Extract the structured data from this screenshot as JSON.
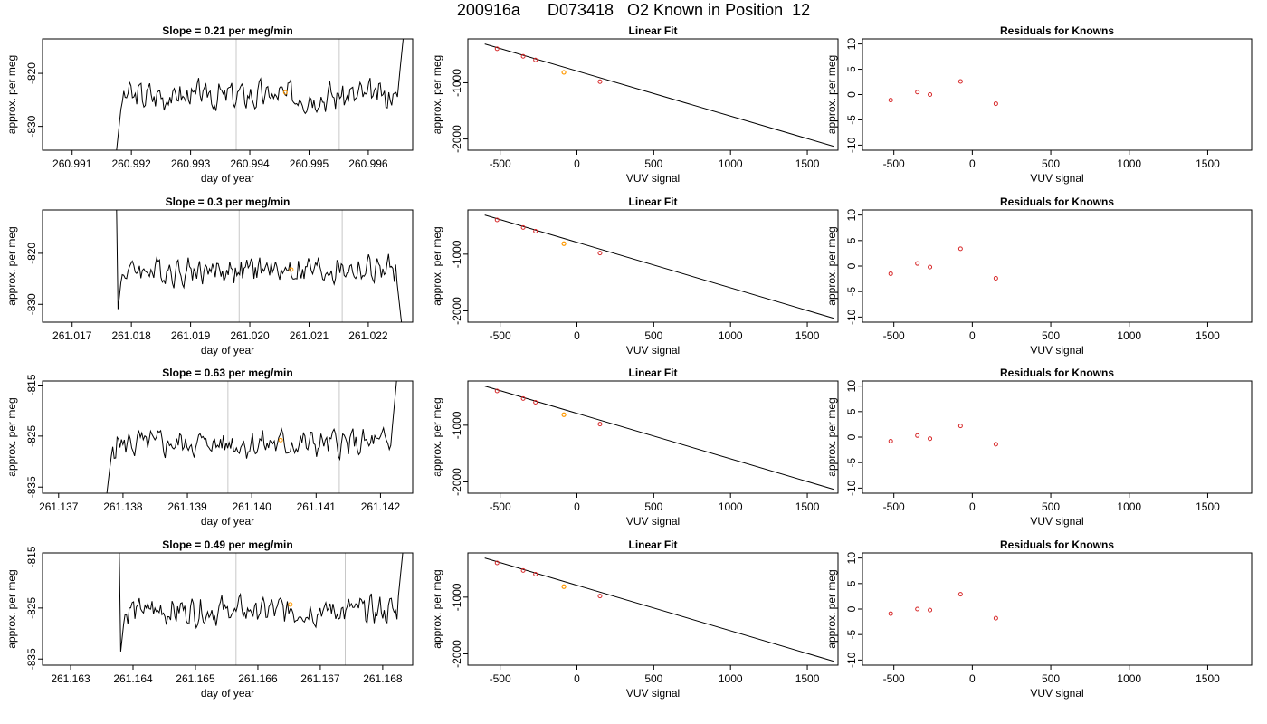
{
  "page": {
    "title": "200916a      D073418   O2 Known in Position  12"
  },
  "colors": {
    "line": "#000000",
    "frame": "#000000",
    "vline": "#c8c8c8",
    "residual": "#d62728",
    "highlight": "#ff9900"
  },
  "chart_data": [
    {
      "type": "line",
      "row": 0,
      "title": "Slope =  0.21  per meg/min",
      "xlabel": "day of year",
      "ylabel": "approx. per meg",
      "xlim": [
        260.9905,
        260.99675
      ],
      "ylim": [
        -834.5,
        -813.5
      ],
      "xticks": [
        260.991,
        260.992,
        260.993,
        260.994,
        260.995,
        260.996
      ],
      "xtick_labels": [
        "260.991",
        "260.992",
        "260.993",
        "260.994",
        "260.995",
        "260.996"
      ],
      "yticks": [
        -820,
        -830
      ],
      "ytick_labels": [
        "-820",
        "-830"
      ],
      "start": 260.99175,
      "end": 260.99659,
      "base": -824.2,
      "min": -834.5,
      "max": -813.5,
      "vlines": [
        260.99377,
        260.99551
      ],
      "point": {
        "x": 260.9946,
        "y": -823.6
      }
    },
    {
      "type": "line",
      "row": 1,
      "title": "Slope =  0.3  per meg/min",
      "xlabel": "day of year",
      "ylabel": "approx. per meg",
      "xlim": [
        261.0165,
        261.02275
      ],
      "ylim": [
        -833.5,
        -811.5
      ],
      "xticks": [
        261.017,
        261.018,
        261.019,
        261.02,
        261.021,
        261.022
      ],
      "xtick_labels": [
        "261.017",
        "261.018",
        "261.019",
        "261.020",
        "261.021",
        "261.022"
      ],
      "yticks": [
        -820,
        -830
      ],
      "ytick_labels": [
        "-820",
        "-830"
      ],
      "start": 261.01775,
      "end": 261.02256,
      "base": -823.3,
      "min": -833.5,
      "max": -811.5,
      "vlines": [
        261.01982,
        261.02156
      ],
      "point": {
        "x": 261.0207,
        "y": -823.2
      }
    },
    {
      "type": "line",
      "row": 2,
      "title": "Slope =  0.63  per meg/min",
      "xlabel": "day of year",
      "ylabel": "approx. per meg",
      "xlim": [
        261.13675,
        261.1425
      ],
      "ylim": [
        -836.2,
        -814.2
      ],
      "xticks": [
        261.137,
        261.138,
        261.139,
        261.14,
        261.141,
        261.142
      ],
      "xtick_labels": [
        "261.137",
        "261.138",
        "261.139",
        "261.140",
        "261.141",
        "261.142"
      ],
      "yticks": [
        -815,
        -825,
        -835
      ],
      "ytick_labels": [
        "-815",
        "-825",
        "-835"
      ],
      "start": 261.13775,
      "end": 261.14225,
      "base": -826.5,
      "min": -836.2,
      "max": -814.2,
      "vlines": [
        261.13963,
        261.14136
      ],
      "point": {
        "x": 261.14045,
        "y": -825.8
      }
    },
    {
      "type": "line",
      "row": 3,
      "title": "Slope =  0.49  per meg/min",
      "xlabel": "day of year",
      "ylabel": "approx. per meg",
      "xlim": [
        261.16255,
        261.16848
      ],
      "ylim": [
        -836.2,
        -814.2
      ],
      "xticks": [
        261.163,
        261.164,
        261.165,
        261.166,
        261.167,
        261.168
      ],
      "xtick_labels": [
        "261.163",
        "261.164",
        "261.165",
        "261.166",
        "261.167",
        "261.168"
      ],
      "yticks": [
        -815,
        -825,
        -835
      ],
      "ytick_labels": [
        "-815",
        "-825",
        "-835"
      ],
      "start": 261.16378,
      "end": 261.16832,
      "base": -825.5,
      "min": -836.2,
      "max": -814.2,
      "vlines": [
        261.16565,
        261.1674
      ],
      "point": {
        "x": 261.16652,
        "y": -824.3
      }
    },
    {
      "type": "scatter",
      "row": 0,
      "title": "Linear Fit",
      "xlabel": "VUV signal",
      "ylabel": "approx. per meg",
      "xlim": [
        -710,
        1700
      ],
      "ylim": [
        -2200,
        -220
      ],
      "xticks": [
        -500,
        0,
        500,
        1000,
        1500
      ],
      "xtick_labels": [
        "-500",
        "0",
        "500",
        "1000",
        "1500"
      ],
      "yticks": [
        -1000,
        -2000
      ],
      "ytick_labels": [
        "-1000",
        "-2000"
      ],
      "fit_line": {
        "x": [
          -600,
          1670
        ],
        "y": [
          -310,
          -2130
        ]
      },
      "x": [
        -520,
        -350,
        -270,
        150
      ],
      "y": [
        -395,
        -530,
        -595,
        -980
      ],
      "highlight": {
        "x": -85,
        "y": -815
      }
    },
    {
      "type": "scatter",
      "row": 1,
      "title": "Linear Fit",
      "xlabel": "VUV signal",
      "ylabel": "approx. per meg",
      "xlim": [
        -710,
        1700
      ],
      "ylim": [
        -2200,
        -220
      ],
      "xticks": [
        -500,
        0,
        500,
        1000,
        1500
      ],
      "xtick_labels": [
        "-500",
        "0",
        "500",
        "1000",
        "1500"
      ],
      "yticks": [
        -1000,
        -2000
      ],
      "ytick_labels": [
        "-1000",
        "-2000"
      ],
      "fit_line": {
        "x": [
          -600,
          1670
        ],
        "y": [
          -310,
          -2130
        ]
      },
      "x": [
        -520,
        -350,
        -270,
        150
      ],
      "y": [
        -395,
        -530,
        -595,
        -980
      ],
      "highlight": {
        "x": -85,
        "y": -815
      }
    },
    {
      "type": "scatter",
      "row": 2,
      "title": "Linear Fit",
      "xlabel": "VUV signal",
      "ylabel": "approx. per meg",
      "xlim": [
        -710,
        1700
      ],
      "ylim": [
        -2200,
        -220
      ],
      "xticks": [
        -500,
        0,
        500,
        1000,
        1500
      ],
      "xtick_labels": [
        "-500",
        "0",
        "500",
        "1000",
        "1500"
      ],
      "yticks": [
        -1000,
        -2000
      ],
      "ytick_labels": [
        "-1000",
        "-2000"
      ],
      "fit_line": {
        "x": [
          -600,
          1670
        ],
        "y": [
          -310,
          -2130
        ]
      },
      "x": [
        -520,
        -350,
        -270,
        150
      ],
      "y": [
        -395,
        -530,
        -595,
        -980
      ],
      "highlight": {
        "x": -85,
        "y": -815
      }
    },
    {
      "type": "scatter",
      "row": 3,
      "title": "Linear Fit",
      "xlabel": "VUV signal",
      "ylabel": "approx. per meg",
      "xlim": [
        -710,
        1700
      ],
      "ylim": [
        -2200,
        -220
      ],
      "xticks": [
        -500,
        0,
        500,
        1000,
        1500
      ],
      "xtick_labels": [
        "-500",
        "0",
        "500",
        "1000",
        "1500"
      ],
      "yticks": [
        -1000,
        -2000
      ],
      "ytick_labels": [
        "-1000",
        "-2000"
      ],
      "fit_line": {
        "x": [
          -600,
          1670
        ],
        "y": [
          -310,
          -2130
        ]
      },
      "x": [
        -520,
        -350,
        -270,
        150
      ],
      "y": [
        -395,
        -530,
        -595,
        -980
      ],
      "highlight": {
        "x": -85,
        "y": -815
      }
    },
    {
      "type": "scatter",
      "row": 0,
      "title": "Residuals for Knowns",
      "xlabel": "VUV signal",
      "ylabel": "approx. per meg",
      "xlim": [
        -700,
        1780
      ],
      "ylim": [
        -11,
        11
      ],
      "xticks": [
        -500,
        0,
        500,
        1000,
        1500
      ],
      "xtick_labels": [
        "-500",
        "0",
        "500",
        "1000",
        "1500"
      ],
      "yticks": [
        10,
        5,
        0,
        -5,
        -10
      ],
      "ytick_labels": [
        "10",
        "5",
        "0",
        "-5",
        "-10"
      ],
      "x": [
        -520,
        -350,
        -270,
        -75,
        150
      ],
      "y": [
        -1.1,
        0.5,
        0.0,
        2.6,
        -1.8
      ]
    },
    {
      "type": "scatter",
      "row": 1,
      "title": "Residuals for Knowns",
      "xlabel": "VUV signal",
      "ylabel": "approx. per meg",
      "xlim": [
        -700,
        1780
      ],
      "ylim": [
        -11,
        11
      ],
      "xticks": [
        -500,
        0,
        500,
        1000,
        1500
      ],
      "xtick_labels": [
        "-500",
        "0",
        "500",
        "1000",
        "1500"
      ],
      "yticks": [
        10,
        5,
        0,
        -5,
        -10
      ],
      "ytick_labels": [
        "10",
        "5",
        "0",
        "-5",
        "-10"
      ],
      "x": [
        -520,
        -350,
        -270,
        -75,
        150
      ],
      "y": [
        -1.5,
        0.5,
        -0.2,
        3.4,
        -2.4
      ]
    },
    {
      "type": "scatter",
      "row": 2,
      "title": "Residuals for Knowns",
      "xlabel": "VUV signal",
      "ylabel": "approx. per meg",
      "xlim": [
        -700,
        1780
      ],
      "ylim": [
        -11,
        11
      ],
      "xticks": [
        -500,
        0,
        500,
        1000,
        1500
      ],
      "xtick_labels": [
        "-500",
        "0",
        "500",
        "1000",
        "1500"
      ],
      "yticks": [
        10,
        5,
        0,
        -5,
        -10
      ],
      "ytick_labels": [
        "10",
        "5",
        "0",
        "-5",
        "-10"
      ],
      "x": [
        -520,
        -350,
        -270,
        -75,
        150
      ],
      "y": [
        -0.8,
        0.3,
        -0.3,
        2.2,
        -1.4
      ]
    },
    {
      "type": "scatter",
      "row": 3,
      "title": "Residuals for Knowns",
      "xlabel": "VUV signal",
      "ylabel": "approx. per meg",
      "xlim": [
        -700,
        1780
      ],
      "ylim": [
        -11,
        11
      ],
      "xticks": [
        -500,
        0,
        500,
        1000,
        1500
      ],
      "xtick_labels": [
        "-500",
        "0",
        "500",
        "1000",
        "1500"
      ],
      "yticks": [
        10,
        5,
        0,
        -5,
        -10
      ],
      "ytick_labels": [
        "10",
        "5",
        "0",
        "-5",
        "-10"
      ],
      "x": [
        -520,
        -350,
        -270,
        -75,
        150
      ],
      "y": [
        -0.9,
        0.0,
        -0.2,
        2.9,
        -1.8
      ]
    }
  ]
}
